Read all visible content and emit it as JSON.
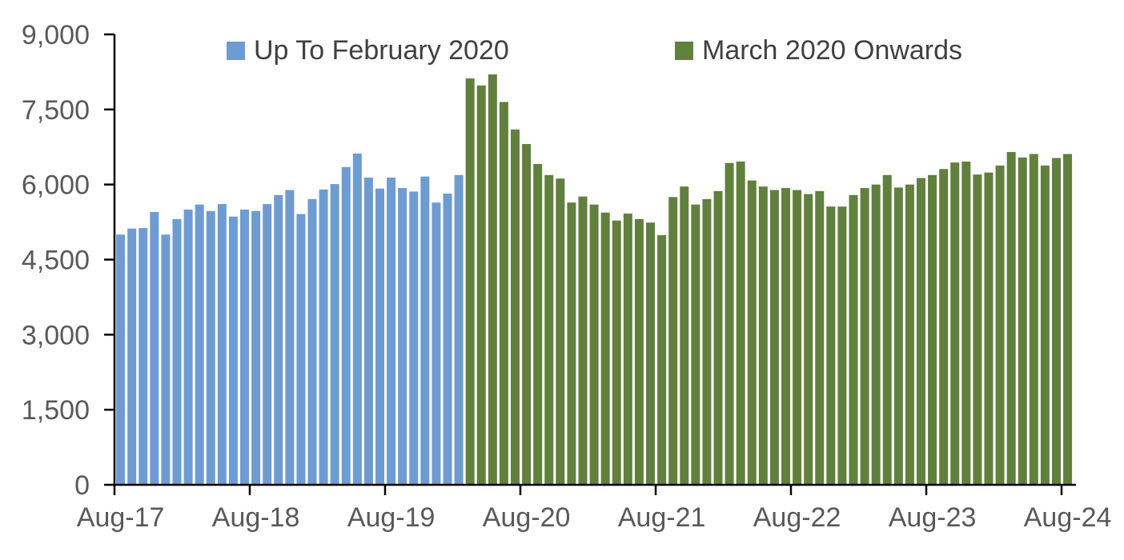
{
  "chart_data": {
    "type": "bar",
    "title": "",
    "xlabel": "",
    "ylabel": "",
    "ylim": [
      0,
      9000
    ],
    "yticks": [
      0,
      1500,
      3000,
      4500,
      6000,
      7500,
      9000
    ],
    "ytick_labels": [
      "0",
      "1,500",
      "3,000",
      "4,500",
      "6,000",
      "7,500",
      "9,000"
    ],
    "xtick_labels": [
      "Aug-17",
      "Aug-18",
      "Aug-19",
      "Aug-20",
      "Aug-21",
      "Aug-22",
      "Aug-23",
      "Aug-24"
    ],
    "grid": false,
    "legend_position": "top",
    "categories": [
      "Aug-17",
      "Sep-17",
      "Oct-17",
      "Nov-17",
      "Dec-17",
      "Jan-18",
      "Feb-18",
      "Mar-18",
      "Apr-18",
      "May-18",
      "Jun-18",
      "Jul-18",
      "Aug-18",
      "Sep-18",
      "Oct-18",
      "Nov-18",
      "Dec-18",
      "Jan-19",
      "Feb-19",
      "Mar-19",
      "Apr-19",
      "May-19",
      "Jun-19",
      "Jul-19",
      "Aug-19",
      "Sep-19",
      "Oct-19",
      "Nov-19",
      "Dec-19",
      "Jan-20",
      "Feb-20",
      "Mar-20",
      "Apr-20",
      "May-20",
      "Jun-20",
      "Jul-20",
      "Aug-20",
      "Sep-20",
      "Oct-20",
      "Nov-20",
      "Dec-20",
      "Jan-21",
      "Feb-21",
      "Mar-21",
      "Apr-21",
      "May-21",
      "Jun-21",
      "Jul-21",
      "Aug-21",
      "Sep-21",
      "Oct-21",
      "Nov-21",
      "Dec-21",
      "Jan-22",
      "Feb-22",
      "Mar-22",
      "Apr-22",
      "May-22",
      "Jun-22",
      "Jul-22",
      "Aug-22",
      "Sep-22",
      "Oct-22",
      "Nov-22",
      "Dec-22",
      "Jan-23",
      "Feb-23",
      "Mar-23",
      "Apr-23",
      "May-23",
      "Jun-23",
      "Jul-23",
      "Aug-23",
      "Sep-23",
      "Oct-23",
      "Nov-23",
      "Dec-23",
      "Jan-24",
      "Feb-24",
      "Mar-24",
      "Apr-24",
      "May-24",
      "Jun-24",
      "Jul-24",
      "Aug-24"
    ],
    "series": [
      {
        "name": "Up To February 2020",
        "color": "#6E9CD2",
        "first_category": "Aug-17",
        "last_category": "Feb-20",
        "values": [
          5000,
          5120,
          5130,
          5450,
          5000,
          5310,
          5500,
          5600,
          5470,
          5610,
          5360,
          5500,
          5470,
          5610,
          5790,
          5890,
          5410,
          5710,
          5900,
          6010,
          6350,
          6620,
          6140,
          5920,
          6140,
          5930,
          5860,
          6160,
          5640,
          5820,
          6190
        ]
      },
      {
        "name": "March 2020 Onwards",
        "color": "#61803E",
        "first_category": "Mar-20",
        "last_category": "Aug-24",
        "values": [
          8120,
          7980,
          8200,
          7650,
          7100,
          6810,
          6410,
          6190,
          6120,
          5640,
          5760,
          5600,
          5440,
          5280,
          5420,
          5310,
          5240,
          4990,
          5750,
          5960,
          5600,
          5710,
          5870,
          6430,
          6460,
          6080,
          5960,
          5890,
          5930,
          5890,
          5810,
          5870,
          5560,
          5560,
          5790,
          5930,
          6000,
          6190,
          5940,
          6000,
          6130,
          6190,
          6310,
          6440,
          6460,
          6200,
          6240,
          6380,
          6650,
          6540,
          6610,
          6380,
          6530,
          6610
        ]
      }
    ]
  },
  "style": {
    "axis_line_color": "#000000",
    "axis_text_color": "#595959",
    "legend_text_color": "#404040",
    "background": "#ffffff"
  }
}
